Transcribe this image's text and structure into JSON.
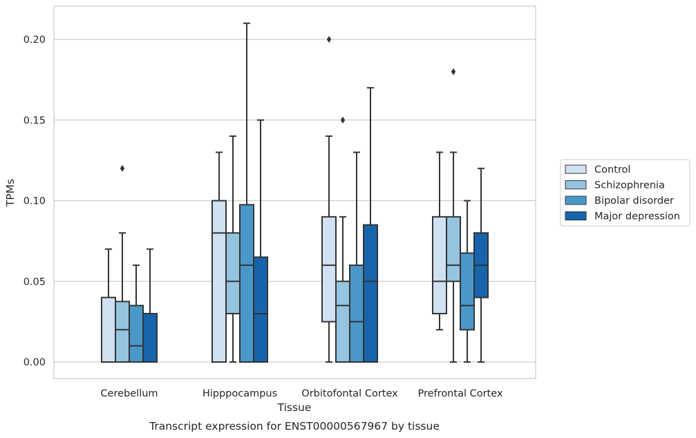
{
  "chart_data": {
    "type": "box",
    "caption": "Transcript expression for ENST00000567967 by tissue",
    "xlabel": "Tissue",
    "ylabel": "TPMs",
    "ylim": [
      -0.01,
      0.22
    ],
    "yticks": [
      0.0,
      0.05,
      0.1,
      0.15,
      0.2
    ],
    "ytick_labels": [
      "0.00",
      "0.05",
      "0.10",
      "0.15",
      "0.20"
    ],
    "grid": "horizontal",
    "legend_position": "right",
    "categories": [
      "Cerebellum",
      "Hipppocampus",
      "Orbitofontal Cortex",
      "Prefrontal Cortex"
    ],
    "series": [
      {
        "name": "Control",
        "color": "#d0e1f2",
        "boxes": [
          {
            "whislo": 0.0,
            "q1": 0.0,
            "med": 0.0,
            "q3": 0.04,
            "whishi": 0.07,
            "fliers": []
          },
          {
            "whislo": 0.0,
            "q1": 0.0,
            "med": 0.08,
            "q3": 0.1,
            "whishi": 0.13,
            "fliers": []
          },
          {
            "whislo": 0.0,
            "q1": 0.025,
            "med": 0.06,
            "q3": 0.09,
            "whishi": 0.14,
            "fliers": [
              0.2
            ]
          },
          {
            "whislo": 0.02,
            "q1": 0.03,
            "med": 0.05,
            "q3": 0.09,
            "whishi": 0.13,
            "fliers": []
          }
        ]
      },
      {
        "name": "Schizophrenia",
        "color": "#94c4df",
        "boxes": [
          {
            "whislo": 0.0,
            "q1": 0.0,
            "med": 0.02,
            "q3": 0.0375,
            "whishi": 0.08,
            "fliers": [
              0.12
            ]
          },
          {
            "whislo": 0.0,
            "q1": 0.03,
            "med": 0.05,
            "q3": 0.08,
            "whishi": 0.14,
            "fliers": []
          },
          {
            "whislo": 0.0,
            "q1": 0.0,
            "med": 0.035,
            "q3": 0.05,
            "whishi": 0.09,
            "fliers": [
              0.15
            ]
          },
          {
            "whislo": 0.0,
            "q1": 0.05,
            "med": 0.06,
            "q3": 0.09,
            "whishi": 0.13,
            "fliers": [
              0.18
            ]
          }
        ]
      },
      {
        "name": "Bipolar disorder",
        "color": "#4a98c9",
        "boxes": [
          {
            "whislo": 0.0,
            "q1": 0.0,
            "med": 0.01,
            "q3": 0.035,
            "whishi": 0.06,
            "fliers": []
          },
          {
            "whislo": 0.0,
            "q1": 0.0,
            "med": 0.06,
            "q3": 0.0975,
            "whishi": 0.21,
            "fliers": []
          },
          {
            "whislo": 0.0,
            "q1": 0.0,
            "med": 0.025,
            "q3": 0.06,
            "whishi": 0.13,
            "fliers": []
          },
          {
            "whislo": 0.0,
            "q1": 0.02,
            "med": 0.035,
            "q3": 0.0675,
            "whishi": 0.1,
            "fliers": []
          }
        ]
      },
      {
        "name": "Major depression",
        "color": "#1764ab",
        "boxes": [
          {
            "whislo": 0.0,
            "q1": 0.0,
            "med": 0.0,
            "q3": 0.03,
            "whishi": 0.07,
            "fliers": []
          },
          {
            "whislo": 0.0,
            "q1": 0.0,
            "med": 0.03,
            "q3": 0.065,
            "whishi": 0.15,
            "fliers": []
          },
          {
            "whislo": 0.0,
            "q1": 0.0,
            "med": 0.05,
            "q3": 0.085,
            "whishi": 0.17,
            "fliers": []
          },
          {
            "whislo": 0.0,
            "q1": 0.04,
            "med": 0.06,
            "q3": 0.08,
            "whishi": 0.12,
            "fliers": []
          }
        ]
      }
    ]
  }
}
